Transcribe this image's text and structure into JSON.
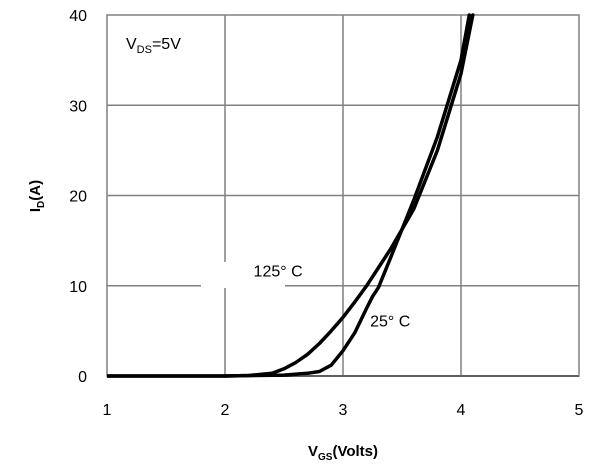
{
  "chart_data": {
    "type": "line",
    "xlabel_main": "V",
    "xlabel_sub": "GS",
    "xlabel_rest": "(Volts)",
    "ylabel_main": "I",
    "ylabel_sub": "D",
    "ylabel_rest": "(A)",
    "xlim": [
      1,
      5
    ],
    "ylim": [
      0,
      40
    ],
    "x_ticks": [
      1,
      2,
      3,
      4,
      5
    ],
    "y_ticks": [
      0,
      10,
      20,
      30,
      40
    ],
    "grid": true,
    "condition_main": "V",
    "condition_sub": "DS",
    "condition_rest": "=5V",
    "series": [
      {
        "name": "125° C",
        "x": [
          1.0,
          2.0,
          2.2,
          2.4,
          2.5,
          2.6,
          2.7,
          2.8,
          2.9,
          3.0,
          3.1,
          3.2,
          3.4,
          3.6,
          3.8,
          4.0,
          4.1
        ],
        "y": [
          0.0,
          0.0,
          0.05,
          0.3,
          0.8,
          1.5,
          2.4,
          3.6,
          5.0,
          6.5,
          8.2,
          10.0,
          14.0,
          18.5,
          25.0,
          33.5,
          40.0
        ]
      },
      {
        "name": "25° C",
        "x": [
          1.0,
          2.0,
          2.5,
          2.7,
          2.8,
          2.9,
          3.0,
          3.1,
          3.2,
          3.25,
          3.3,
          3.4,
          3.6,
          3.8,
          4.0,
          4.07
        ],
        "y": [
          0.0,
          0.0,
          0.1,
          0.3,
          0.5,
          1.2,
          2.8,
          4.8,
          7.5,
          8.8,
          9.8,
          13.0,
          19.5,
          26.5,
          35.0,
          40.0
        ]
      }
    ],
    "annotations": [
      {
        "text": "125° C",
        "x": 2.45,
        "y": 11.0
      },
      {
        "text": "25° C",
        "x": 3.4,
        "y": 5.5
      }
    ]
  }
}
